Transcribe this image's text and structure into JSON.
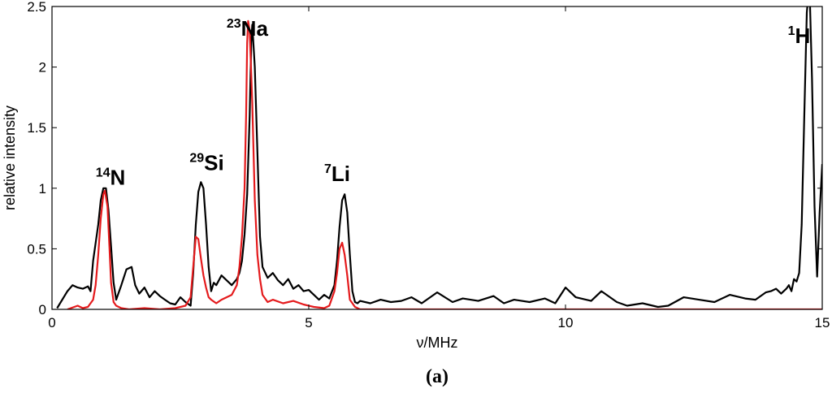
{
  "chart_data": {
    "type": "line",
    "xlabel": "ν/MHz",
    "ylabel": "relative intensity",
    "xlim": [
      0,
      15
    ],
    "ylim": [
      0,
      2.5
    ],
    "xticks": [
      0,
      5,
      10,
      15
    ],
    "yticks": [
      0,
      0.5,
      1,
      1.5,
      2,
      2.5
    ],
    "grid": false,
    "caption": "(a)",
    "series": [
      {
        "color": "#000000",
        "x": [
          0.1,
          0.3,
          0.4,
          0.5,
          0.6,
          0.7,
          0.75,
          0.8,
          0.9,
          0.95,
          1.0,
          1.05,
          1.1,
          1.15,
          1.2,
          1.25,
          1.35,
          1.45,
          1.55,
          1.62,
          1.7,
          1.8,
          1.9,
          2.0,
          2.1,
          2.2,
          2.3,
          2.4,
          2.5,
          2.6,
          2.7,
          2.75,
          2.8,
          2.85,
          2.9,
          2.95,
          3.0,
          3.05,
          3.1,
          3.15,
          3.2,
          3.3,
          3.4,
          3.5,
          3.6,
          3.65,
          3.7,
          3.75,
          3.8,
          3.85,
          3.88,
          3.9,
          3.95,
          4.0,
          4.05,
          4.1,
          4.2,
          4.3,
          4.4,
          4.5,
          4.6,
          4.7,
          4.8,
          4.9,
          5.0,
          5.1,
          5.2,
          5.3,
          5.4,
          5.5,
          5.55,
          5.6,
          5.65,
          5.7,
          5.75,
          5.8,
          5.85,
          5.9,
          5.95,
          6.0,
          6.2,
          6.4,
          6.6,
          6.8,
          7.0,
          7.2,
          7.5,
          7.8,
          8.0,
          8.3,
          8.6,
          8.8,
          9.0,
          9.3,
          9.6,
          9.8,
          10.0,
          10.2,
          10.5,
          10.7,
          11.0,
          11.2,
          11.5,
          11.8,
          12.0,
          12.3,
          12.6,
          12.9,
          13.2,
          13.5,
          13.7,
          13.9,
          14.0,
          14.1,
          14.2,
          14.3,
          14.35,
          14.4,
          14.45,
          14.5,
          14.55,
          14.6,
          14.65,
          14.7,
          14.75,
          14.8,
          14.85,
          14.9,
          14.95,
          15.0
        ],
        "y": [
          0.01,
          0.15,
          0.2,
          0.18,
          0.17,
          0.19,
          0.15,
          0.4,
          0.7,
          0.9,
          1.0,
          1.0,
          0.82,
          0.52,
          0.22,
          0.08,
          0.2,
          0.33,
          0.35,
          0.2,
          0.13,
          0.18,
          0.1,
          0.15,
          0.11,
          0.08,
          0.05,
          0.04,
          0.1,
          0.06,
          0.03,
          0.3,
          0.7,
          0.97,
          1.05,
          1.0,
          0.7,
          0.35,
          0.15,
          0.22,
          0.2,
          0.28,
          0.24,
          0.2,
          0.25,
          0.3,
          0.4,
          0.62,
          0.95,
          1.6,
          2.2,
          2.35,
          2.0,
          1.3,
          0.6,
          0.35,
          0.26,
          0.3,
          0.24,
          0.2,
          0.25,
          0.17,
          0.2,
          0.15,
          0.16,
          0.12,
          0.08,
          0.12,
          0.09,
          0.2,
          0.4,
          0.68,
          0.9,
          0.95,
          0.8,
          0.45,
          0.15,
          0.06,
          0.05,
          0.07,
          0.05,
          0.08,
          0.06,
          0.07,
          0.1,
          0.05,
          0.14,
          0.06,
          0.09,
          0.07,
          0.11,
          0.05,
          0.08,
          0.06,
          0.09,
          0.05,
          0.18,
          0.1,
          0.07,
          0.15,
          0.06,
          0.03,
          0.05,
          0.02,
          0.03,
          0.1,
          0.08,
          0.06,
          0.12,
          0.09,
          0.08,
          0.14,
          0.15,
          0.17,
          0.13,
          0.17,
          0.2,
          0.15,
          0.25,
          0.23,
          0.3,
          0.7,
          1.6,
          2.45,
          2.7,
          1.9,
          0.85,
          0.27,
          0.8,
          1.2
        ]
      },
      {
        "color": "#e41a1c",
        "x": [
          0.3,
          0.5,
          0.6,
          0.7,
          0.8,
          0.85,
          0.9,
          0.95,
          1.0,
          1.03,
          1.08,
          1.12,
          1.15,
          1.2,
          1.25,
          1.35,
          1.5,
          1.8,
          2.1,
          2.4,
          2.6,
          2.7,
          2.75,
          2.8,
          2.85,
          2.9,
          2.95,
          3.0,
          3.05,
          3.1,
          3.2,
          3.3,
          3.4,
          3.5,
          3.6,
          3.65,
          3.7,
          3.75,
          3.78,
          3.8,
          3.82,
          3.85,
          3.9,
          3.95,
          4.0,
          4.05,
          4.1,
          4.2,
          4.3,
          4.5,
          4.7,
          4.9,
          5.1,
          5.3,
          5.4,
          5.5,
          5.55,
          5.6,
          5.65,
          5.7,
          5.75,
          5.8,
          5.9,
          6.0,
          6.5,
          7.0,
          8.0,
          9.0,
          10.0,
          11.0,
          12.0,
          13.0,
          14.0,
          14.5,
          15.0
        ],
        "y": [
          0.0,
          0.03,
          0.01,
          0.02,
          0.08,
          0.2,
          0.45,
          0.75,
          0.95,
          0.98,
          0.85,
          0.5,
          0.22,
          0.06,
          0.03,
          0.01,
          0.0,
          0.01,
          0.0,
          0.01,
          0.03,
          0.1,
          0.35,
          0.6,
          0.58,
          0.42,
          0.28,
          0.18,
          0.1,
          0.08,
          0.05,
          0.08,
          0.1,
          0.12,
          0.2,
          0.35,
          0.6,
          1.0,
          1.6,
          2.2,
          2.38,
          2.3,
          1.7,
          0.9,
          0.45,
          0.25,
          0.12,
          0.06,
          0.08,
          0.05,
          0.07,
          0.04,
          0.02,
          0.01,
          0.03,
          0.15,
          0.3,
          0.5,
          0.55,
          0.45,
          0.28,
          0.08,
          0.02,
          0.0,
          0.0,
          0.0,
          0.0,
          0.0,
          0.0,
          0.0,
          0.0,
          0.0,
          0.0,
          0.0,
          0.0
        ]
      }
    ],
    "annotations": [
      {
        "sup": "14",
        "text": "N",
        "x": 0.85,
        "y": 1.03
      },
      {
        "sup": "29",
        "text": "Si",
        "x": 2.68,
        "y": 1.15
      },
      {
        "sup": "23",
        "text": "Na",
        "x": 3.4,
        "y": 2.26
      },
      {
        "sup": "7",
        "text": "Li",
        "x": 5.3,
        "y": 1.06
      },
      {
        "sup": "1",
        "text": "H",
        "x": 14.33,
        "y": 2.2
      }
    ]
  }
}
